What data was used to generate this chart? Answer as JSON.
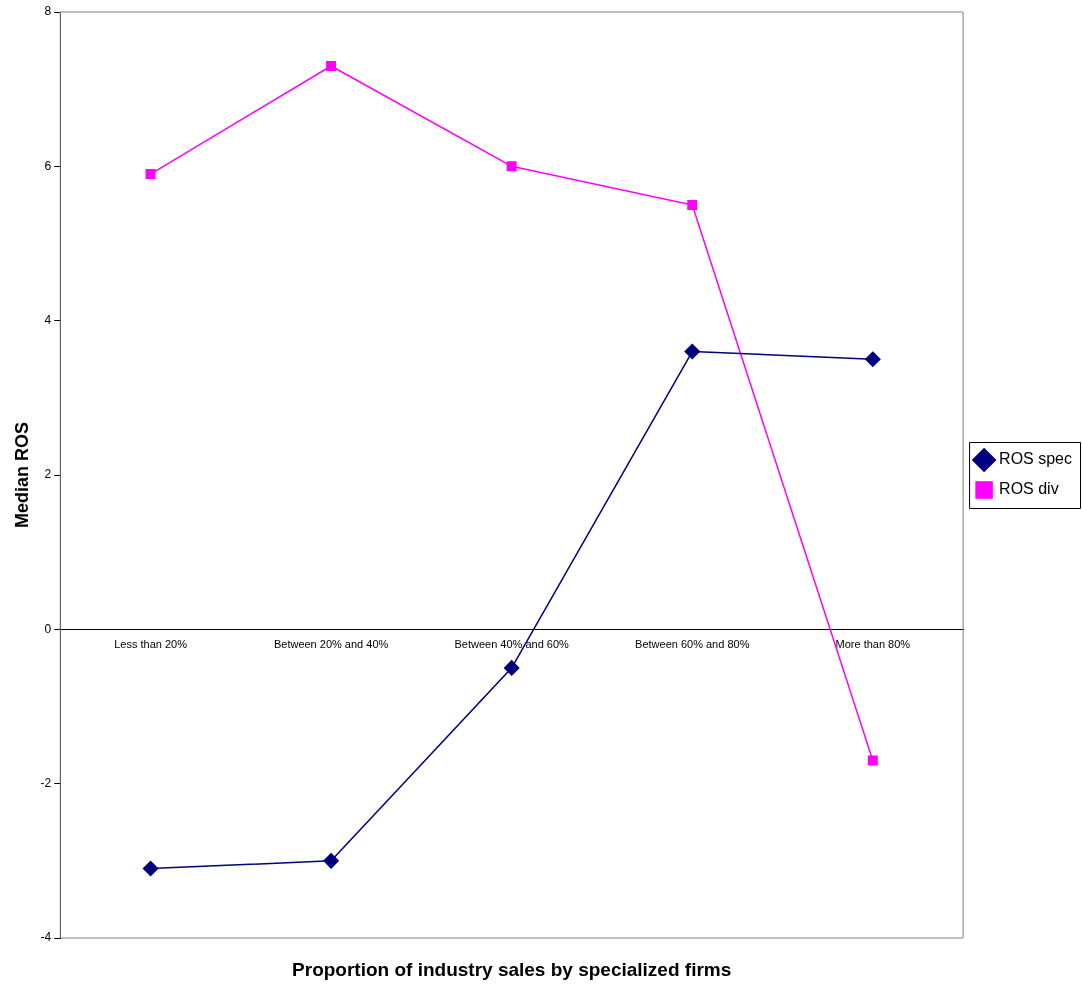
{
  "chart_data": {
    "type": "line",
    "xlabel": "Proportion of industry sales by specialized firms",
    "ylabel": "Median ROS",
    "categories": [
      "Less than 20%",
      "Between 20% and 40%",
      "Between 40% and 60%",
      "Between 60% and 80%",
      "More than 80%"
    ],
    "series": [
      {
        "name": "ROS spec",
        "color": "#000080",
        "marker": "diamond",
        "values": [
          -3.1,
          -3.0,
          -0.5,
          3.6,
          3.5
        ]
      },
      {
        "name": "ROS div",
        "color": "#ff00ff",
        "marker": "square",
        "values": [
          5.9,
          7.3,
          6.0,
          5.5,
          -1.7
        ]
      }
    ],
    "ylim": [
      -4,
      8
    ],
    "yticks": [
      -4,
      -2,
      0,
      2,
      4,
      6,
      8
    ],
    "grid": false,
    "legend": "right"
  }
}
